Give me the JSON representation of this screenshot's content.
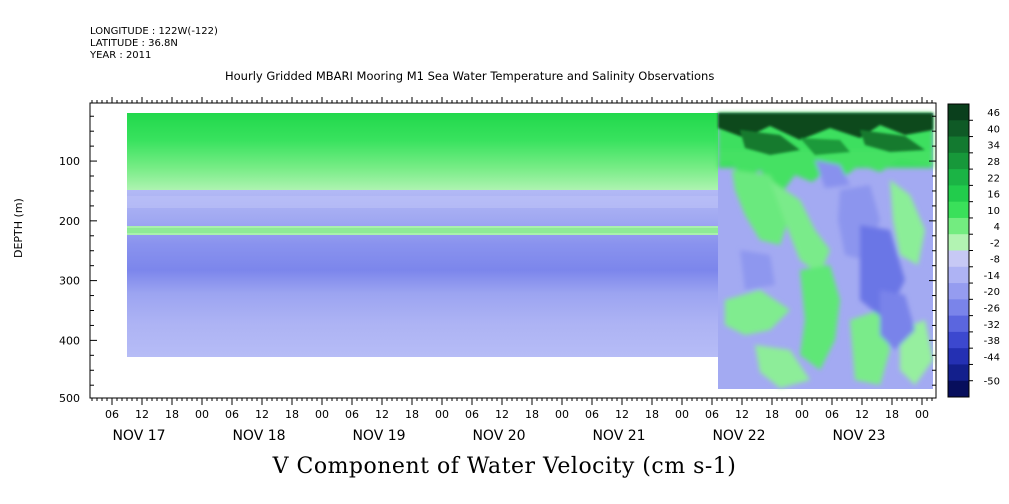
{
  "header": {
    "longitude": "LONGITUDE : 122W(-122)",
    "latitude": "LATITUDE : 36.8N",
    "year": "YEAR : 2011"
  },
  "chart_data": {
    "type": "heatmap",
    "title": "Hourly Gridded MBARI Mooring M1 Sea Water Temperature and Salinity Observations",
    "xlabel": "V Component of Water Velocity (cm s-1)",
    "ylabel": "DEPTH (m)",
    "ylim": [
      500,
      10
    ],
    "y_ticks": [
      100,
      200,
      300,
      400,
      500
    ],
    "x_day_labels": [
      "NOV 17",
      "NOV 18",
      "NOV 19",
      "NOV 20",
      "NOV 21",
      "NOV 22",
      "NOV 23"
    ],
    "x_hour_labels": [
      "06",
      "12",
      "18",
      "00",
      "06",
      "12",
      "18",
      "00",
      "06",
      "12",
      "18",
      "00",
      "06",
      "12",
      "18",
      "00",
      "06",
      "12",
      "18",
      "00",
      "06",
      "12",
      "18",
      "00",
      "06",
      "12",
      "18",
      "00"
    ],
    "colorbar_levels": [
      46,
      40,
      34,
      28,
      22,
      16,
      10,
      4,
      -2,
      -8,
      -14,
      -20,
      -26,
      -32,
      -38,
      -44,
      -50
    ],
    "colorbar_colors": [
      "#0a3f1c",
      "#0f5a26",
      "#137a30",
      "#17983a",
      "#1bb445",
      "#22cc4c",
      "#3ae05a",
      "#73ec80",
      "#b2f3b2",
      "#c7c9f5",
      "#aeb3f4",
      "#959cf0",
      "#7a84ea",
      "#5b66df",
      "#3c48cf",
      "#2430b3",
      "#131f8c",
      "#070e5c"
    ],
    "colors": {
      "green": "#33e05a",
      "blue": "#a3aaf2"
    }
  }
}
